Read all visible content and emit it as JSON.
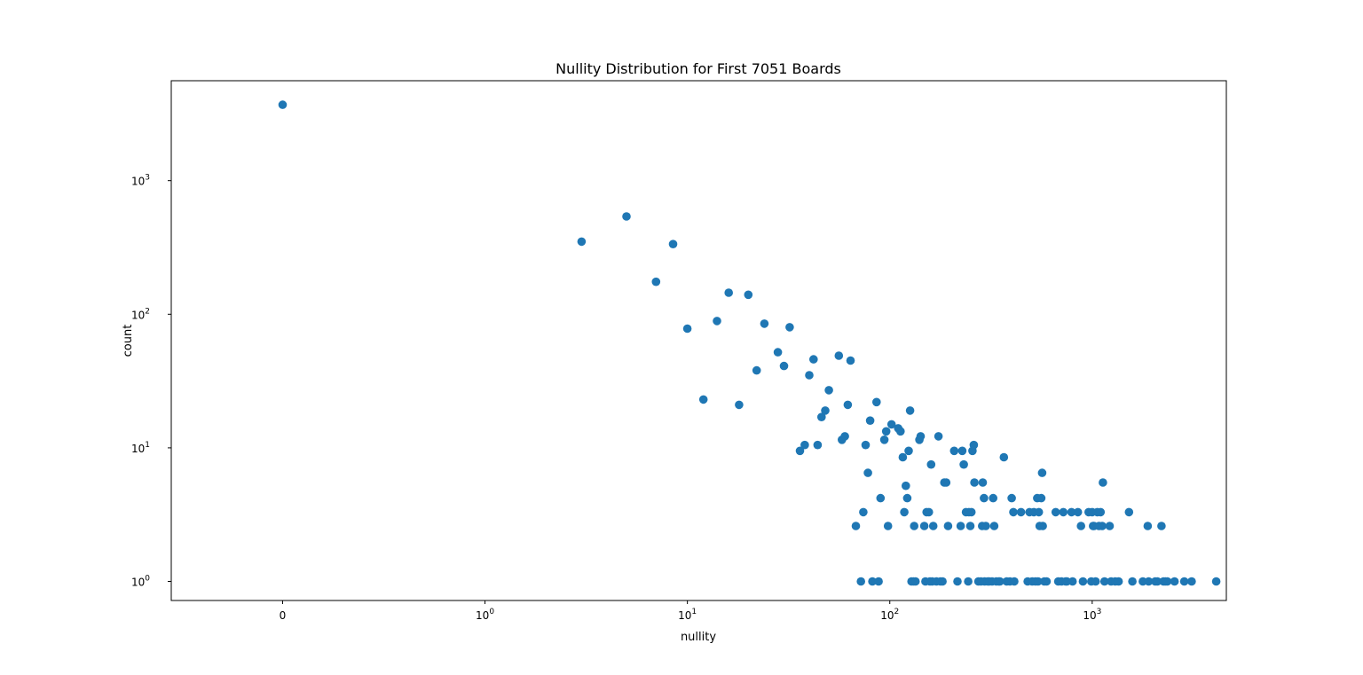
{
  "chart_data": {
    "type": "scatter",
    "title": "Nullity Distribution for First 7051 Boards",
    "xlabel": "nullity",
    "ylabel": "count",
    "xscale": "symlog",
    "yscale": "log",
    "xlim": [
      -0.55,
      4600
    ],
    "ylim": [
      0.72,
      5600
    ],
    "grid": false,
    "marker_color": "#1f77b4",
    "x_ticks": [
      {
        "value": 0,
        "base": "0",
        "exp": ""
      },
      {
        "value": 1,
        "base": "10",
        "exp": "0"
      },
      {
        "value": 10,
        "base": "10",
        "exp": "1"
      },
      {
        "value": 100,
        "base": "10",
        "exp": "2"
      },
      {
        "value": 1000,
        "base": "10",
        "exp": "3"
      }
    ],
    "y_ticks": [
      {
        "value": 1,
        "base": "10",
        "exp": "0"
      },
      {
        "value": 10,
        "base": "10",
        "exp": "1"
      },
      {
        "value": 100,
        "base": "10",
        "exp": "2"
      },
      {
        "value": 1000,
        "base": "10",
        "exp": "3"
      }
    ],
    "points": [
      [
        0,
        3700
      ],
      [
        3,
        350
      ],
      [
        5,
        540
      ],
      [
        7,
        175
      ],
      [
        8.5,
        335
      ],
      [
        10,
        78
      ],
      [
        12,
        23
      ],
      [
        14,
        89
      ],
      [
        16,
        145
      ],
      [
        18,
        21
      ],
      [
        20,
        140
      ],
      [
        22,
        38
      ],
      [
        24,
        85
      ],
      [
        28,
        52
      ],
      [
        30,
        41
      ],
      [
        32,
        80
      ],
      [
        36,
        9.5
      ],
      [
        38,
        10.5
      ],
      [
        40,
        35
      ],
      [
        42,
        46
      ],
      [
        44,
        10.5
      ],
      [
        46,
        17
      ],
      [
        48,
        19
      ],
      [
        50,
        27
      ],
      [
        56,
        49
      ],
      [
        58,
        11.5
      ],
      [
        60,
        12.2
      ],
      [
        62,
        21
      ],
      [
        64,
        45
      ],
      [
        68,
        2.6
      ],
      [
        72,
        1
      ],
      [
        74,
        3.3
      ],
      [
        76,
        10.5
      ],
      [
        78,
        6.5
      ],
      [
        80,
        16
      ],
      [
        82,
        1
      ],
      [
        86,
        22
      ],
      [
        88,
        1
      ],
      [
        90,
        4.2
      ],
      [
        94,
        11.5
      ],
      [
        96,
        13.3
      ],
      [
        98,
        2.6
      ],
      [
        102,
        15
      ],
      [
        110,
        14
      ],
      [
        113,
        13.3
      ],
      [
        116,
        8.5
      ],
      [
        118,
        3.3
      ],
      [
        120,
        5.2
      ],
      [
        122,
        4.2
      ],
      [
        124,
        9.5
      ],
      [
        126,
        19
      ],
      [
        128,
        1
      ],
      [
        131,
        1
      ],
      [
        132,
        2.6
      ],
      [
        134,
        1
      ],
      [
        140,
        11.5
      ],
      [
        142,
        12.2
      ],
      [
        148,
        2.6
      ],
      [
        150,
        1
      ],
      [
        152,
        3.3
      ],
      [
        156,
        3.3
      ],
      [
        158,
        1
      ],
      [
        160,
        7.5
      ],
      [
        162,
        1
      ],
      [
        164,
        2.6
      ],
      [
        170,
        1
      ],
      [
        174,
        12.2
      ],
      [
        178,
        1
      ],
      [
        182,
        1
      ],
      [
        186,
        5.5
      ],
      [
        190,
        5.5
      ],
      [
        194,
        2.6
      ],
      [
        208,
        9.5
      ],
      [
        216,
        1
      ],
      [
        224,
        2.6
      ],
      [
        228,
        9.5
      ],
      [
        232,
        7.5
      ],
      [
        238,
        3.3
      ],
      [
        244,
        1
      ],
      [
        246,
        3.3
      ],
      [
        250,
        2.6
      ],
      [
        253,
        3.3
      ],
      [
        256,
        9.5
      ],
      [
        260,
        10.5
      ],
      [
        262,
        5.5
      ],
      [
        274,
        1
      ],
      [
        282,
        1
      ],
      [
        286,
        2.6
      ],
      [
        288,
        5.5
      ],
      [
        292,
        4.2
      ],
      [
        294,
        1
      ],
      [
        298,
        2.6
      ],
      [
        305,
        1
      ],
      [
        310,
        1
      ],
      [
        320,
        1
      ],
      [
        324,
        4.2
      ],
      [
        328,
        2.6
      ],
      [
        336,
        1
      ],
      [
        345,
        1
      ],
      [
        350,
        1
      ],
      [
        366,
        8.5
      ],
      [
        378,
        1
      ],
      [
        392,
        1
      ],
      [
        400,
        4.2
      ],
      [
        408,
        3.3
      ],
      [
        412,
        1
      ],
      [
        445,
        3.3
      ],
      [
        480,
        1
      ],
      [
        490,
        3.3
      ],
      [
        505,
        1
      ],
      [
        515,
        3.3
      ],
      [
        525,
        1
      ],
      [
        535,
        4.2
      ],
      [
        540,
        1
      ],
      [
        545,
        3.3
      ],
      [
        550,
        2.6
      ],
      [
        560,
        4.2
      ],
      [
        566,
        6.5
      ],
      [
        570,
        2.6
      ],
      [
        580,
        1
      ],
      [
        595,
        1
      ],
      [
        660,
        3.3
      ],
      [
        680,
        1
      ],
      [
        705,
        1
      ],
      [
        720,
        3.3
      ],
      [
        740,
        1
      ],
      [
        750,
        1
      ],
      [
        790,
        3.3
      ],
      [
        800,
        1
      ],
      [
        850,
        3.3
      ],
      [
        880,
        2.6
      ],
      [
        900,
        1
      ],
      [
        960,
        3.3
      ],
      [
        990,
        1
      ],
      [
        1000,
        3.3
      ],
      [
        1010,
        2.6
      ],
      [
        1020,
        2.6
      ],
      [
        1040,
        1
      ],
      [
        1060,
        3.3
      ],
      [
        1080,
        2.6
      ],
      [
        1100,
        3.3
      ],
      [
        1120,
        2.6
      ],
      [
        1130,
        5.5
      ],
      [
        1150,
        1
      ],
      [
        1220,
        2.6
      ],
      [
        1240,
        1
      ],
      [
        1300,
        1
      ],
      [
        1350,
        1
      ],
      [
        1520,
        3.3
      ],
      [
        1580,
        1
      ],
      [
        1780,
        1
      ],
      [
        1880,
        2.6
      ],
      [
        1900,
        1
      ],
      [
        2050,
        1
      ],
      [
        2100,
        1
      ],
      [
        2200,
        2.6
      ],
      [
        2250,
        1
      ],
      [
        2300,
        1
      ],
      [
        2350,
        1
      ],
      [
        2550,
        1
      ],
      [
        2850,
        1
      ],
      [
        3100,
        1
      ],
      [
        4100,
        1
      ]
    ]
  }
}
